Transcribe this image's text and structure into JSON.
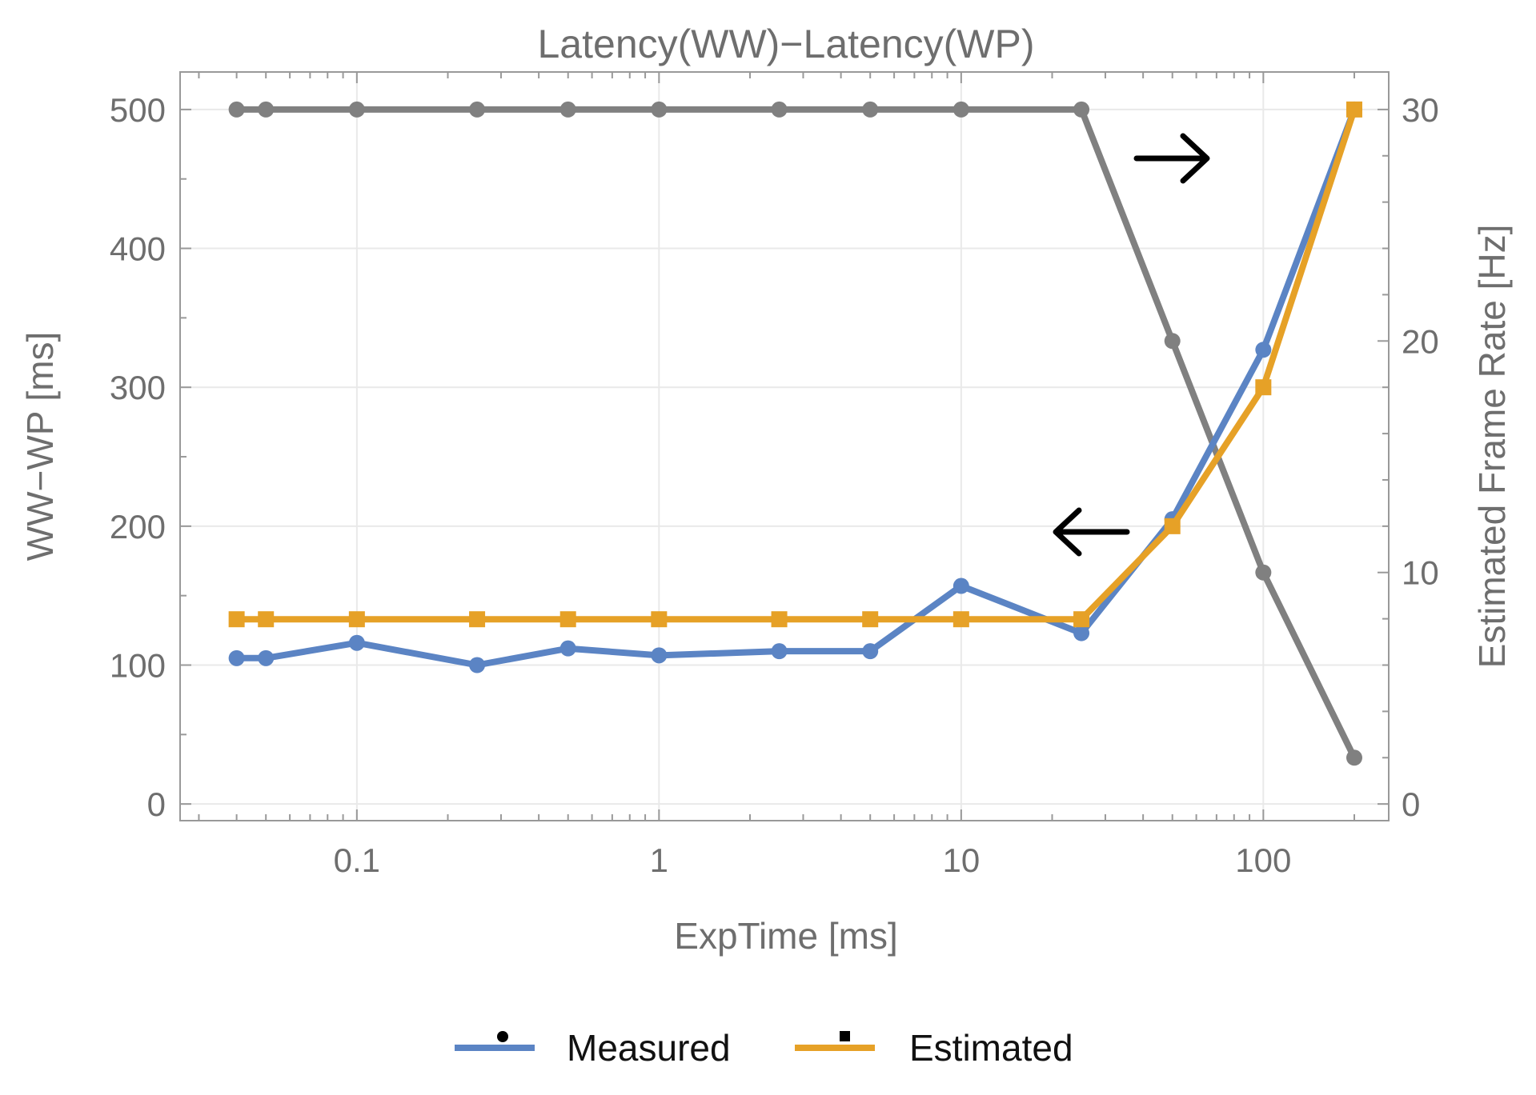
{
  "chart_data": {
    "type": "line",
    "title": "Latency(WW)−Latency(WP)",
    "xlabel": "ExpTime [ms]",
    "ylabel": "WW−WP [ms]",
    "y2label": "Estimated Frame Rate [Hz]",
    "xscale": "log",
    "xlim": [
      0.026,
      260
    ],
    "ylim": [
      -12,
      527
    ],
    "y2lim": [
      -0.72,
      31.62
    ],
    "x_ticks": [
      0.1,
      1,
      10,
      100
    ],
    "x_tick_labels": [
      "0.1",
      "1",
      "10",
      "100"
    ],
    "y_ticks": [
      0,
      100,
      200,
      300,
      400,
      500
    ],
    "y_tick_labels": [
      "0",
      "100",
      "200",
      "300",
      "400",
      "500"
    ],
    "y2_ticks": [
      0,
      10,
      20,
      30
    ],
    "y2_tick_labels": [
      "0",
      "10",
      "20",
      "30"
    ],
    "grid": true,
    "x": [
      0.04,
      0.05,
      0.1,
      0.25,
      0.5,
      1,
      2.5,
      5,
      10,
      25,
      50,
      100,
      200
    ],
    "series": [
      {
        "name": "Measured",
        "axis": "left",
        "color": "#5b84c4",
        "marker": "circle",
        "values": [
          105,
          105,
          116,
          100,
          112,
          107,
          110,
          110,
          157,
          123,
          205,
          327,
          500
        ]
      },
      {
        "name": "Estimated",
        "axis": "left",
        "color": "#e6a127",
        "marker": "square",
        "values": [
          133,
          133,
          133,
          133,
          133,
          133,
          133,
          133,
          133,
          133,
          200,
          300,
          500
        ]
      },
      {
        "name": "Estimated Frame Rate",
        "axis": "right",
        "color": "#808080",
        "marker": "circle",
        "in_legend": false,
        "values": [
          30,
          30,
          30,
          30,
          30,
          30,
          30,
          30,
          30,
          30,
          20,
          10,
          2
        ]
      }
    ],
    "annotations": [
      {
        "type": "arrow",
        "direction": "right",
        "meaning": "frame rate series uses right axis"
      },
      {
        "type": "arrow",
        "direction": "left",
        "meaning": "latency series use left axis"
      }
    ],
    "legend": {
      "placement": "bottom-center",
      "entries": [
        {
          "label": "Measured",
          "marker": "circle",
          "color": "#5b84c4"
        },
        {
          "label": "Estimated",
          "marker": "square",
          "color": "#e6a127"
        }
      ]
    }
  }
}
